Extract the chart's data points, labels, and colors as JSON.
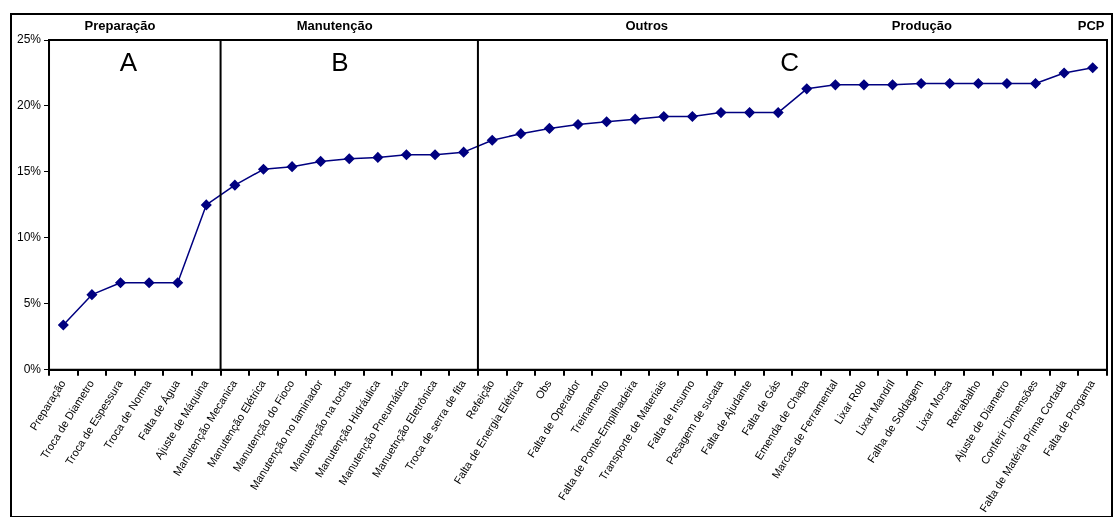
{
  "chart_data": {
    "type": "line",
    "categories": [
      "Preparação",
      "Troca de Diametro",
      "Troca de Espessura",
      "Troca de Norma",
      "Falta de Água",
      "Ajuste de Máquina",
      "Manutenção Mecanica",
      "Manutenção Elétrica",
      "Manutenção do Fioco",
      "Manutenção no laminador",
      "Manutenção na tocha",
      "Manutenção Hidráulica",
      "Manutenção Pneumática",
      "Manuetnção Eletrônica",
      "Troca de serra de fita",
      "Refeição",
      "Falta de Energia Elétrica",
      "Obs",
      "Falta de Operador",
      "Treinamento",
      "Falta de Ponte-Empilhadeira",
      "Transporte de Materiais",
      "Falta de Insumo",
      "Pesagem de sucata",
      "Falta de Ajudante",
      "Falta de Gás",
      "Emenda de Chapa",
      "Marcas de Ferramental",
      "Lixar Rolo",
      "Lixar Mandril",
      "Falha de Soldagem",
      "Lixar Morsa",
      "Retrabalho",
      "Ajuste de Diametro",
      "Conferir Dimensões",
      "Falta de Matéria Prima Cortada",
      "Falta de Progama"
    ],
    "series": [
      {
        "color": "#000080",
        "values": [
          3.4,
          5.7,
          6.6,
          6.6,
          6.6,
          12.5,
          14.0,
          15.2,
          15.4,
          15.8,
          16.0,
          16.1,
          16.3,
          16.3,
          16.5,
          17.4,
          17.9,
          18.3,
          18.6,
          18.8,
          19.0,
          19.2,
          19.2,
          19.5,
          19.5,
          19.5,
          21.3,
          21.6,
          21.6,
          21.6,
          21.7,
          21.7,
          21.7,
          21.7,
          21.7,
          22.5,
          22.9
        ]
      }
    ],
    "ylim": [
      0,
      25
    ],
    "yticks": [
      {
        "value": 0,
        "label": "0%"
      },
      {
        "value": 5,
        "label": "5%"
      },
      {
        "value": 10,
        "label": "10%"
      },
      {
        "value": 15,
        "label": "15%"
      },
      {
        "value": 20,
        "label": "20%"
      },
      {
        "value": 25,
        "label": "25%"
      }
    ],
    "marker": "diamond",
    "line_style": "solid",
    "grid": false,
    "legend": false,
    "annotations": [
      "Preparação",
      "Manutenção",
      "Outros",
      "Produção",
      "PCP",
      "A",
      "B",
      "C"
    ]
  }
}
